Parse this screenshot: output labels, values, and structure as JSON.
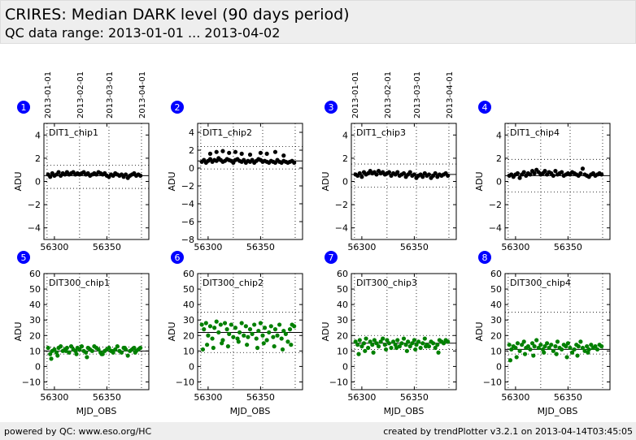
{
  "header": {
    "title": "CRIRES: Median DARK level (90 days period)",
    "subtitle": "QC data range: 2013-01-01 ... 2013-04-02"
  },
  "footer": {
    "left": "powered by QC: www.eso.org/HC",
    "right": "created by trendPlotter v3.2.1 on 2013-04-14T03:45:05"
  },
  "colors": {
    "top_series": "#000000",
    "bottom_series": "#008000",
    "marker": "#0000ff"
  },
  "chart_data": {
    "type": "scatter",
    "grid": false,
    "xlim": [
      56290,
      56390
    ],
    "x_ticks": [
      56300,
      56350
    ],
    "date_ticks": [
      "2013-01-01",
      "2013-02-01",
      "2013-03-01",
      "2013-04-01"
    ],
    "date_tick_mjd": [
      56293,
      56324,
      56352,
      56383
    ],
    "panels": [
      {
        "num": "1",
        "label": "DIT1_chip1",
        "ylim": [
          -5,
          5
        ],
        "yticks": [
          -4,
          -2,
          0,
          2,
          4
        ],
        "ylabel": "ADU",
        "xlabel": "",
        "ref": 0.5,
        "upper": 1.4,
        "lower": -0.6,
        "x": [
          56294,
          56296,
          56298,
          56300,
          56302,
          56304,
          56306,
          56308,
          56310,
          56312,
          56314,
          56316,
          56318,
          56320,
          56322,
          56324,
          56326,
          56328,
          56330,
          56332,
          56334,
          56336,
          56338,
          56340,
          56342,
          56344,
          56346,
          56348,
          56350,
          56352,
          56354,
          56356,
          56358,
          56360,
          56362,
          56364,
          56366,
          56368,
          56370,
          56372,
          56374,
          56376,
          56378,
          56380,
          56382
        ],
        "y": [
          0.6,
          0.4,
          0.7,
          0.5,
          0.6,
          0.8,
          0.5,
          0.7,
          0.6,
          0.8,
          0.6,
          0.7,
          0.8,
          0.6,
          0.7,
          0.6,
          0.7,
          0.8,
          0.6,
          0.7,
          0.5,
          0.6,
          0.7,
          0.6,
          0.8,
          0.7,
          0.6,
          0.7,
          0.5,
          0.4,
          0.6,
          0.5,
          0.7,
          0.6,
          0.5,
          0.6,
          0.4,
          0.6,
          0.3,
          0.5,
          0.6,
          0.7,
          0.5,
          0.6,
          0.5
        ]
      },
      {
        "num": "2",
        "label": "DIT1_chip2",
        "ylim": [
          -8,
          5
        ],
        "yticks": [
          -8,
          -6,
          -4,
          -2,
          0,
          2,
          4
        ],
        "ylabel": "ADU",
        "xlabel": "",
        "ref": 0.8,
        "upper": 2.4,
        "lower": -0.1,
        "x": [
          56294,
          56296,
          56298,
          56300,
          56302,
          56304,
          56306,
          56308,
          56310,
          56312,
          56314,
          56316,
          56318,
          56320,
          56322,
          56324,
          56326,
          56328,
          56330,
          56332,
          56334,
          56336,
          56338,
          56340,
          56342,
          56344,
          56346,
          56348,
          56350,
          56352,
          56354,
          56356,
          56358,
          56360,
          56362,
          56364,
          56366,
          56368,
          56370,
          56372,
          56374,
          56376,
          56378,
          56380,
          56382,
          56302,
          56308,
          56314,
          56320,
          56326,
          56332,
          56340,
          56350,
          56356,
          56364,
          56372
        ],
        "y": [
          0.7,
          0.9,
          0.6,
          0.8,
          1.0,
          0.7,
          0.9,
          0.8,
          1.1,
          0.9,
          0.7,
          0.8,
          1.0,
          0.9,
          0.8,
          0.6,
          0.9,
          1.0,
          0.8,
          0.7,
          0.9,
          0.6,
          0.8,
          0.7,
          0.9,
          0.6,
          0.8,
          1.0,
          0.9,
          0.7,
          0.8,
          0.7,
          0.6,
          0.8,
          0.7,
          0.6,
          0.9,
          0.7,
          0.6,
          0.8,
          0.7,
          0.6,
          0.7,
          0.8,
          0.6,
          1.6,
          1.8,
          1.9,
          1.7,
          1.8,
          1.6,
          1.5,
          1.7,
          1.6,
          1.8,
          1.4
        ]
      },
      {
        "num": "3",
        "label": "DIT1_chip3",
        "ylim": [
          -5,
          5
        ],
        "yticks": [
          -4,
          -2,
          0,
          2,
          4
        ],
        "ylabel": "ADU",
        "xlabel": "",
        "ref": 0.6,
        "upper": 1.5,
        "lower": -0.5,
        "x": [
          56294,
          56296,
          56298,
          56300,
          56302,
          56304,
          56306,
          56308,
          56310,
          56312,
          56314,
          56316,
          56318,
          56320,
          56322,
          56324,
          56326,
          56328,
          56330,
          56332,
          56334,
          56336,
          56338,
          56340,
          56342,
          56344,
          56346,
          56348,
          56350,
          56352,
          56354,
          56356,
          56358,
          56360,
          56362,
          56364,
          56366,
          56368,
          56370,
          56372,
          56374,
          56376,
          56378,
          56380,
          56382
        ],
        "y": [
          0.6,
          0.5,
          0.7,
          0.4,
          0.8,
          0.6,
          0.7,
          0.9,
          0.7,
          0.8,
          0.6,
          0.9,
          0.7,
          0.8,
          0.6,
          0.7,
          0.8,
          0.5,
          0.7,
          0.6,
          0.8,
          0.5,
          0.6,
          0.7,
          0.4,
          0.6,
          0.8,
          0.5,
          0.6,
          0.3,
          0.5,
          0.6,
          0.4,
          0.7,
          0.5,
          0.6,
          0.3,
          0.5,
          0.7,
          0.4,
          0.6,
          0.5,
          0.6,
          0.7,
          0.5
        ]
      },
      {
        "num": "4",
        "label": "DIT1_chip4",
        "ylim": [
          -5,
          5
        ],
        "yticks": [
          -4,
          -2,
          0,
          2,
          4
        ],
        "ylabel": "ADU",
        "xlabel": "",
        "ref": 0.5,
        "upper": 1.9,
        "lower": -0.9,
        "x": [
          56294,
          56296,
          56298,
          56300,
          56302,
          56304,
          56306,
          56308,
          56310,
          56312,
          56314,
          56316,
          56318,
          56320,
          56322,
          56324,
          56326,
          56328,
          56330,
          56332,
          56334,
          56336,
          56338,
          56340,
          56342,
          56344,
          56346,
          56348,
          56350,
          56352,
          56354,
          56356,
          56358,
          56360,
          56362,
          56364,
          56366,
          56368,
          56370,
          56372,
          56374,
          56376,
          56378,
          56380,
          56382
        ],
        "y": [
          0.5,
          0.6,
          0.4,
          0.6,
          0.7,
          0.3,
          0.6,
          0.8,
          0.5,
          0.7,
          0.6,
          0.9,
          0.7,
          1.0,
          0.8,
          0.6,
          0.7,
          0.9,
          0.6,
          0.8,
          0.7,
          0.5,
          0.9,
          0.6,
          0.7,
          0.8,
          0.5,
          0.6,
          0.7,
          0.6,
          0.8,
          0.7,
          0.6,
          0.5,
          0.7,
          1.1,
          0.6,
          0.5,
          0.4,
          0.6,
          0.7,
          0.5,
          0.6,
          0.7,
          0.6
        ]
      },
      {
        "num": "5",
        "label": "DIT300_chip1",
        "ylim": [
          -15,
          60
        ],
        "yticks": [
          -10,
          0,
          10,
          20,
          30,
          40,
          50,
          60
        ],
        "ylabel": "ADU",
        "xlabel": "MJD_OBS",
        "ref": 10,
        "upper": 12.5,
        "lower": 8,
        "x": [
          56294,
          56296,
          56298,
          56300,
          56302,
          56304,
          56306,
          56308,
          56310,
          56312,
          56314,
          56316,
          56318,
          56320,
          56322,
          56324,
          56326,
          56328,
          56330,
          56332,
          56334,
          56336,
          56338,
          56340,
          56342,
          56344,
          56346,
          56348,
          56350,
          56352,
          56354,
          56356,
          56358,
          56360,
          56362,
          56364,
          56366,
          56368,
          56370,
          56372,
          56374,
          56376,
          56378,
          56380,
          56382,
          56297,
          56303,
          56311,
          56321,
          56331,
          56345,
          56355,
          56367,
          56377
        ],
        "y": [
          12,
          8,
          10,
          11,
          9,
          12,
          13,
          10,
          11,
          12,
          9,
          13,
          11,
          10,
          12,
          11,
          13,
          10,
          9,
          12,
          11,
          10,
          13,
          12,
          11,
          9,
          8,
          10,
          11,
          12,
          10,
          9,
          11,
          13,
          10,
          9,
          12,
          11,
          7,
          10,
          11,
          12,
          10,
          11,
          12,
          5,
          7,
          10,
          8,
          6,
          8,
          10,
          12,
          9
        ]
      },
      {
        "num": "6",
        "label": "DIT300_chip2",
        "ylim": [
          -15,
          60
        ],
        "yticks": [
          -10,
          0,
          10,
          20,
          30,
          40,
          50,
          60
        ],
        "ylabel": "ADU",
        "xlabel": "MJD_OBS",
        "ref": 22,
        "upper": 35,
        "lower": 9,
        "x": [
          56294,
          56296,
          56298,
          56300,
          56302,
          56304,
          56306,
          56308,
          56310,
          56312,
          56314,
          56316,
          56318,
          56320,
          56322,
          56324,
          56326,
          56328,
          56330,
          56332,
          56334,
          56336,
          56338,
          56340,
          56342,
          56344,
          56346,
          56348,
          56350,
          56352,
          56354,
          56356,
          56358,
          56360,
          56362,
          56364,
          56366,
          56368,
          56370,
          56372,
          56374,
          56376,
          56378,
          56380,
          56382,
          56295,
          56299,
          56305,
          56313,
          56319,
          56329,
          56337,
          56347,
          56353,
          56363,
          56371,
          56379
        ],
        "y": [
          27,
          24,
          28,
          20,
          26,
          18,
          25,
          29,
          22,
          27,
          17,
          28,
          24,
          21,
          27,
          19,
          25,
          18,
          22,
          28,
          20,
          26,
          19,
          24,
          21,
          27,
          18,
          23,
          28,
          20,
          25,
          17,
          22,
          26,
          19,
          24,
          20,
          27,
          18,
          23,
          21,
          16,
          24,
          27,
          26,
          11,
          14,
          12,
          15,
          13,
          16,
          14,
          12,
          15,
          13,
          11,
          14
        ]
      },
      {
        "num": "7",
        "label": "DIT300_chip3",
        "ylim": [
          -15,
          60
        ],
        "yticks": [
          -10,
          0,
          10,
          20,
          30,
          40,
          50,
          60
        ],
        "ylabel": "ADU",
        "xlabel": "MJD_OBS",
        "ref": 15,
        "upper": 20,
        "lower": 11,
        "x": [
          56294,
          56296,
          56298,
          56300,
          56302,
          56304,
          56306,
          56308,
          56310,
          56312,
          56314,
          56316,
          56318,
          56320,
          56322,
          56324,
          56326,
          56328,
          56330,
          56332,
          56334,
          56336,
          56338,
          56340,
          56342,
          56344,
          56346,
          56348,
          56350,
          56352,
          56354,
          56356,
          56358,
          56360,
          56362,
          56364,
          56366,
          56368,
          56370,
          56372,
          56374,
          56376,
          56378,
          56380,
          56382,
          56297,
          56303,
          56311,
          56323,
          56333,
          56343,
          56351,
          56361,
          56373
        ],
        "y": [
          16,
          14,
          17,
          13,
          15,
          18,
          12,
          16,
          14,
          17,
          15,
          13,
          16,
          18,
          14,
          17,
          15,
          12,
          16,
          14,
          17,
          13,
          15,
          18,
          14,
          16,
          13,
          15,
          17,
          14,
          16,
          12,
          15,
          18,
          14,
          13,
          16,
          15,
          12,
          14,
          17,
          16,
          15,
          17,
          16,
          8,
          10,
          9,
          11,
          12,
          10,
          11,
          13,
          9
        ]
      },
      {
        "num": "8",
        "label": "DIT300_chip4",
        "ylim": [
          -15,
          60
        ],
        "yticks": [
          -10,
          0,
          10,
          20,
          30,
          40,
          50,
          60
        ],
        "ylabel": "ADU",
        "xlabel": "MJD_OBS",
        "ref": 11,
        "upper": 35,
        "lower": 8,
        "x": [
          56294,
          56296,
          56298,
          56300,
          56302,
          56304,
          56306,
          56308,
          56310,
          56312,
          56314,
          56316,
          56318,
          56320,
          56322,
          56324,
          56326,
          56328,
          56330,
          56332,
          56334,
          56336,
          56338,
          56340,
          56342,
          56344,
          56346,
          56348,
          56350,
          56352,
          56354,
          56356,
          56358,
          56360,
          56362,
          56364,
          56366,
          56368,
          56370,
          56372,
          56374,
          56376,
          56378,
          56380,
          56382,
          56295,
          56301,
          56309,
          56317,
          56327,
          56339,
          56349,
          56359,
          56369
        ],
        "y": [
          14,
          11,
          13,
          12,
          15,
          10,
          14,
          16,
          12,
          13,
          11,
          15,
          13,
          17,
          12,
          14,
          11,
          13,
          15,
          12,
          14,
          10,
          13,
          16,
          12,
          11,
          14,
          13,
          15,
          12,
          9,
          11,
          14,
          13,
          16,
          12,
          10,
          13,
          11,
          14,
          12,
          13,
          11,
          14,
          13,
          4,
          6,
          8,
          7,
          9,
          8,
          6,
          7,
          9
        ]
      }
    ]
  }
}
